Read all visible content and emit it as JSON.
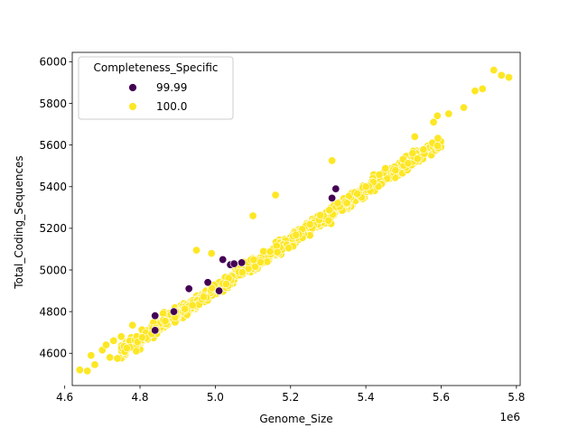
{
  "chart_data": {
    "type": "scatter",
    "xlabel": "Genome_Size",
    "ylabel": "Total_Coding_Sequences",
    "x_offset_label": "1e6",
    "xlim": [
      4.62,
      5.81
    ],
    "ylim": [
      4445,
      6045
    ],
    "x_scale": 1000000,
    "xticks": [
      4.6,
      4.8,
      5.0,
      5.2,
      5.4,
      5.6,
      5.8
    ],
    "xtick_labels": [
      "4.6",
      "4.8",
      "5.0",
      "5.2",
      "5.4",
      "5.6",
      "5.8"
    ],
    "yticks": [
      4600,
      4800,
      5000,
      5200,
      5400,
      5600,
      5800,
      6000
    ],
    "ytick_labels": [
      "4600",
      "4800",
      "5000",
      "5200",
      "5400",
      "5600",
      "5800",
      "6000"
    ],
    "grid": false,
    "legend": {
      "title": "Completeness_Specific",
      "placement": "top-left",
      "entries": [
        "99.99",
        "100.0"
      ]
    },
    "series": [
      {
        "name": "99.99",
        "color": "#440154",
        "points": [
          [
            4.84,
            4780
          ],
          [
            4.84,
            4710
          ],
          [
            4.89,
            4800
          ],
          [
            4.93,
            4910
          ],
          [
            4.98,
            4940
          ],
          [
            5.01,
            4900
          ],
          [
            5.02,
            5050
          ],
          [
            5.04,
            5025
          ],
          [
            5.05,
            5030
          ],
          [
            5.07,
            5035
          ],
          [
            5.31,
            5345
          ],
          [
            5.32,
            5390
          ]
        ]
      },
      {
        "name": "100.0",
        "color": "#fde725",
        "points": [
          [
            4.64,
            4520
          ],
          [
            4.66,
            4515
          ],
          [
            4.67,
            4590
          ],
          [
            4.68,
            4545
          ],
          [
            4.7,
            4615
          ],
          [
            4.71,
            4640
          ],
          [
            4.72,
            4580
          ],
          [
            4.73,
            4660
          ],
          [
            4.74,
            4575
          ],
          [
            4.75,
            4680
          ],
          [
            4.78,
            4735
          ],
          [
            4.79,
            4610
          ],
          [
            5.74,
            5960
          ],
          [
            5.78,
            5925
          ],
          [
            5.76,
            5935
          ],
          [
            5.71,
            5870
          ],
          [
            5.66,
            5780
          ],
          [
            5.69,
            5860
          ],
          [
            5.62,
            5750
          ],
          [
            5.59,
            5740
          ],
          [
            5.58,
            5710
          ],
          [
            5.53,
            5640
          ],
          [
            4.95,
            5095
          ],
          [
            4.99,
            5080
          ],
          [
            5.31,
            5525
          ],
          [
            5.16,
            5360
          ],
          [
            5.1,
            5260
          ],
          [
            5.4,
            5400
          ]
        ]
      }
    ]
  }
}
